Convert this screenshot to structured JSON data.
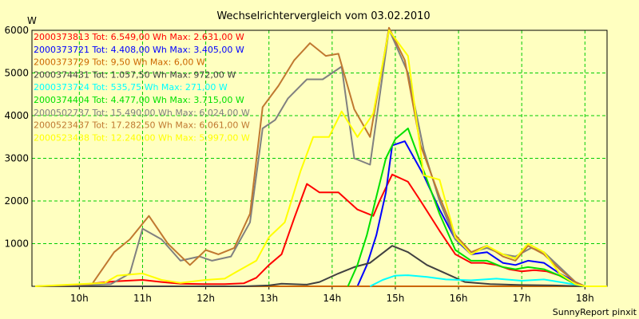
{
  "chart_data": {
    "type": "line",
    "title": "Wechselrichtervergleich vom 03.02.2010",
    "ylabel": "W",
    "footer": "SunnyReport pinxit",
    "ylim": [
      0,
      6000
    ],
    "xlim": [
      9.25,
      18.35
    ],
    "yticks": [
      1000,
      2000,
      3000,
      4000,
      5000,
      6000
    ],
    "ytick_labels": [
      "1000",
      "2000",
      "3000",
      "4000",
      "5000",
      "6000"
    ],
    "xticks": [
      10,
      11,
      12,
      13,
      14,
      15,
      16,
      17,
      18
    ],
    "xtick_labels": [
      "10h",
      "11h",
      "12h",
      "13h",
      "14h",
      "15h",
      "16h",
      "17h",
      "18h"
    ],
    "grid": true,
    "legend_position": "top-left",
    "series": [
      {
        "name": "2000373813 Tot: 6.549,00 Wh Max: 2.631,00 W",
        "color": "#ff0000",
        "points": [
          [
            9.3,
            0
          ],
          [
            9.8,
            0
          ],
          [
            10.3,
            80
          ],
          [
            10.6,
            120
          ],
          [
            11.0,
            150
          ],
          [
            11.3,
            100
          ],
          [
            11.6,
            60
          ],
          [
            12.0,
            50
          ],
          [
            12.3,
            50
          ],
          [
            12.6,
            70
          ],
          [
            12.8,
            200
          ],
          [
            13.0,
            500
          ],
          [
            13.2,
            750
          ],
          [
            13.4,
            1600
          ],
          [
            13.6,
            2400
          ],
          [
            13.8,
            2200
          ],
          [
            14.1,
            2200
          ],
          [
            14.4,
            1800
          ],
          [
            14.65,
            1650
          ],
          [
            14.75,
            2000
          ],
          [
            14.95,
            2620
          ],
          [
            15.2,
            2450
          ],
          [
            15.4,
            2000
          ],
          [
            15.7,
            1300
          ],
          [
            15.95,
            750
          ],
          [
            16.2,
            550
          ],
          [
            16.4,
            550
          ],
          [
            16.6,
            500
          ],
          [
            16.8,
            400
          ],
          [
            17.0,
            350
          ],
          [
            17.2,
            380
          ],
          [
            17.4,
            350
          ],
          [
            17.6,
            250
          ],
          [
            17.85,
            50
          ],
          [
            18.0,
            0
          ],
          [
            18.35,
            0
          ]
        ]
      },
      {
        "name": "2000373721 Tot: 4.408,00 Wh Max: 3.405,00 W",
        "color": "#0000ff",
        "points": [
          [
            14.4,
            0
          ],
          [
            14.55,
            500
          ],
          [
            14.7,
            1200
          ],
          [
            14.85,
            2200
          ],
          [
            14.95,
            3300
          ],
          [
            15.15,
            3400
          ],
          [
            15.45,
            2600
          ],
          [
            15.7,
            1800
          ],
          [
            15.95,
            1100
          ],
          [
            16.2,
            750
          ],
          [
            16.45,
            800
          ],
          [
            16.7,
            550
          ],
          [
            16.9,
            500
          ],
          [
            17.1,
            600
          ],
          [
            17.35,
            550
          ],
          [
            17.6,
            300
          ],
          [
            17.85,
            100
          ],
          [
            18.0,
            0
          ]
        ]
      },
      {
        "name": "2000373729 Tot: 9,50 Wh Max: 6,00 W",
        "color": "#cc6600",
        "points": [
          [
            9.3,
            0
          ],
          [
            18.35,
            0
          ]
        ]
      },
      {
        "name": "2000374431 Tot: 1.057,50 Wh Max: 972,00 W",
        "color": "#404040",
        "points": [
          [
            9.3,
            0
          ],
          [
            12.6,
            0
          ],
          [
            13.0,
            20
          ],
          [
            13.2,
            60
          ],
          [
            13.6,
            40
          ],
          [
            13.8,
            100
          ],
          [
            14.1,
            300
          ],
          [
            14.35,
            450
          ],
          [
            14.6,
            550
          ],
          [
            14.95,
            950
          ],
          [
            15.2,
            800
          ],
          [
            15.5,
            500
          ],
          [
            15.8,
            300
          ],
          [
            16.1,
            100
          ],
          [
            16.5,
            50
          ],
          [
            17.0,
            30
          ],
          [
            17.5,
            20
          ],
          [
            18.0,
            0
          ],
          [
            18.35,
            0
          ]
        ]
      },
      {
        "name": "2000373724 Tot: 535,75 Wh Max: 271,00 W",
        "color": "#00ffff",
        "points": [
          [
            14.6,
            0
          ],
          [
            14.8,
            150
          ],
          [
            15.0,
            250
          ],
          [
            15.2,
            260
          ],
          [
            15.5,
            220
          ],
          [
            15.8,
            160
          ],
          [
            16.2,
            140
          ],
          [
            16.6,
            180
          ],
          [
            17.0,
            130
          ],
          [
            17.35,
            160
          ],
          [
            17.6,
            100
          ],
          [
            17.85,
            40
          ],
          [
            18.0,
            0
          ]
        ]
      },
      {
        "name": "2000374404 Tot: 4.477,00 Wh Max: 3.715,00 W",
        "color": "#00e000",
        "points": [
          [
            14.25,
            0
          ],
          [
            14.4,
            500
          ],
          [
            14.55,
            1200
          ],
          [
            14.7,
            2100
          ],
          [
            14.85,
            3000
          ],
          [
            15.0,
            3450
          ],
          [
            15.2,
            3700
          ],
          [
            15.45,
            2700
          ],
          [
            15.7,
            1700
          ],
          [
            15.95,
            850
          ],
          [
            16.2,
            600
          ],
          [
            16.45,
            600
          ],
          [
            16.7,
            450
          ],
          [
            16.9,
            400
          ],
          [
            17.1,
            450
          ],
          [
            17.35,
            400
          ],
          [
            17.6,
            250
          ],
          [
            17.85,
            50
          ],
          [
            18.0,
            0
          ]
        ]
      },
      {
        "name": "2000502737 Tot: 15.490,00 Wh Max: 6.024,00 W",
        "color": "#808080",
        "points": [
          [
            9.3,
            0
          ],
          [
            10.5,
            50
          ],
          [
            10.8,
            300
          ],
          [
            11.0,
            1350
          ],
          [
            11.3,
            1100
          ],
          [
            11.6,
            600
          ],
          [
            11.9,
            700
          ],
          [
            12.1,
            600
          ],
          [
            12.4,
            700
          ],
          [
            12.7,
            1500
          ],
          [
            12.9,
            3700
          ],
          [
            13.1,
            3900
          ],
          [
            13.3,
            4400
          ],
          [
            13.6,
            4850
          ],
          [
            13.85,
            4850
          ],
          [
            14.15,
            5150
          ],
          [
            14.35,
            3000
          ],
          [
            14.6,
            2850
          ],
          [
            14.9,
            6020
          ],
          [
            15.2,
            5000
          ],
          [
            15.45,
            3200
          ],
          [
            15.7,
            2000
          ],
          [
            15.95,
            1100
          ],
          [
            16.2,
            800
          ],
          [
            16.45,
            900
          ],
          [
            16.7,
            750
          ],
          [
            16.9,
            700
          ],
          [
            17.15,
            900
          ],
          [
            17.35,
            800
          ],
          [
            17.6,
            450
          ],
          [
            17.85,
            100
          ],
          [
            18.0,
            0
          ],
          [
            18.35,
            0
          ]
        ]
      },
      {
        "name": "2000523437 Tot: 17.282,50 Wh Max: 6.061,00 W",
        "color": "#c07830",
        "points": [
          [
            9.3,
            0
          ],
          [
            10.2,
            50
          ],
          [
            10.55,
            800
          ],
          [
            10.8,
            1100
          ],
          [
            11.1,
            1650
          ],
          [
            11.4,
            1000
          ],
          [
            11.75,
            500
          ],
          [
            12.0,
            850
          ],
          [
            12.2,
            750
          ],
          [
            12.45,
            900
          ],
          [
            12.7,
            1700
          ],
          [
            12.9,
            4200
          ],
          [
            13.15,
            4700
          ],
          [
            13.4,
            5300
          ],
          [
            13.65,
            5700
          ],
          [
            13.9,
            5400
          ],
          [
            14.1,
            5450
          ],
          [
            14.35,
            4150
          ],
          [
            14.6,
            3500
          ],
          [
            14.9,
            6060
          ],
          [
            15.15,
            5300
          ],
          [
            15.4,
            3300
          ],
          [
            15.7,
            2100
          ],
          [
            15.95,
            1200
          ],
          [
            16.2,
            800
          ],
          [
            16.45,
            950
          ],
          [
            16.7,
            700
          ],
          [
            16.9,
            600
          ],
          [
            17.1,
            950
          ],
          [
            17.35,
            750
          ],
          [
            17.6,
            400
          ],
          [
            17.85,
            100
          ],
          [
            18.0,
            0
          ],
          [
            18.35,
            0
          ]
        ]
      },
      {
        "name": "2000523438 Tot: 12.240,00 Wh Max: 5.997,00 W",
        "color": "#ffff00",
        "points": [
          [
            9.3,
            0
          ],
          [
            10.4,
            80
          ],
          [
            10.6,
            250
          ],
          [
            11.0,
            300
          ],
          [
            11.3,
            150
          ],
          [
            11.6,
            80
          ],
          [
            12.0,
            150
          ],
          [
            12.3,
            180
          ],
          [
            12.5,
            350
          ],
          [
            12.8,
            600
          ],
          [
            13.0,
            1150
          ],
          [
            13.25,
            1500
          ],
          [
            13.5,
            2700
          ],
          [
            13.7,
            3500
          ],
          [
            13.95,
            3500
          ],
          [
            14.15,
            4100
          ],
          [
            14.4,
            3500
          ],
          [
            14.65,
            4050
          ],
          [
            14.9,
            6000
          ],
          [
            15.2,
            5400
          ],
          [
            15.45,
            2600
          ],
          [
            15.7,
            2500
          ],
          [
            15.95,
            1150
          ],
          [
            16.2,
            750
          ],
          [
            16.45,
            950
          ],
          [
            16.7,
            750
          ],
          [
            16.9,
            650
          ],
          [
            17.1,
            1000
          ],
          [
            17.35,
            800
          ],
          [
            17.6,
            300
          ],
          [
            17.85,
            50
          ],
          [
            18.0,
            0
          ],
          [
            18.35,
            0
          ]
        ]
      }
    ]
  }
}
